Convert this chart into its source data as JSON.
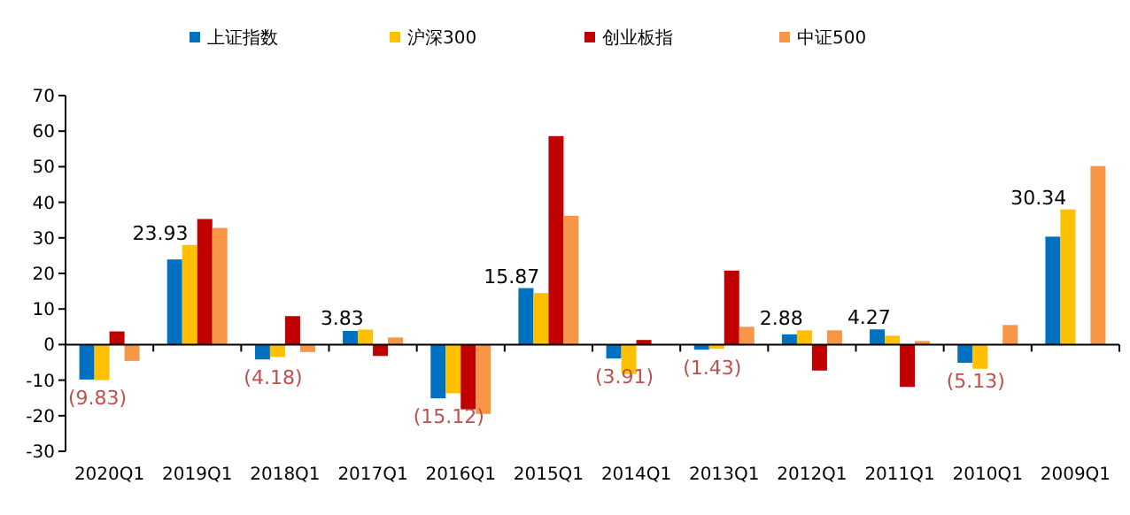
{
  "chart_data": {
    "type": "bar",
    "categories": [
      "2020Q1",
      "2019Q1",
      "2018Q1",
      "2017Q1",
      "2016Q1",
      "2015Q1",
      "2014Q1",
      "2013Q1",
      "2012Q1",
      "2011Q1",
      "2010Q1",
      "2009Q1"
    ],
    "series": [
      {
        "name": "上证指数",
        "color": "#0070c0",
        "values": [
          -9.83,
          23.93,
          -4.18,
          3.83,
          -15.12,
          15.87,
          -3.91,
          -1.43,
          2.88,
          4.27,
          -5.13,
          30.34
        ],
        "value_labels": [
          "(9.83)",
          "23.93",
          "(4.18)",
          "3.83",
          "(15.12)",
          "15.87",
          "(3.91)",
          "(1.43)",
          "2.88",
          "4.27",
          "(5.13)",
          "30.34"
        ]
      },
      {
        "name": "沪深300",
        "color": "#ffc000",
        "values": [
          -10,
          28,
          -3.5,
          4.2,
          -13.7,
          14.5,
          -8.3,
          -1.2,
          4,
          2.5,
          -6.8,
          38
        ]
      },
      {
        "name": "创业板指",
        "color": "#c00000",
        "values": [
          3.7,
          35.3,
          8,
          -3.2,
          -18.2,
          58.6,
          1.3,
          20.8,
          -7.3,
          -11.9,
          null,
          null
        ]
      },
      {
        "name": "中证500",
        "color": "#f79646",
        "values": [
          -4.6,
          32.8,
          -2.1,
          2,
          -19.5,
          36.2,
          0,
          5,
          4,
          1,
          5.5,
          50.2
        ]
      }
    ],
    "ylim": [
      -30,
      70
    ],
    "yticks": [
      -30,
      -20,
      -10,
      0,
      10,
      20,
      30,
      40,
      50,
      60,
      70
    ],
    "legend": "top"
  }
}
